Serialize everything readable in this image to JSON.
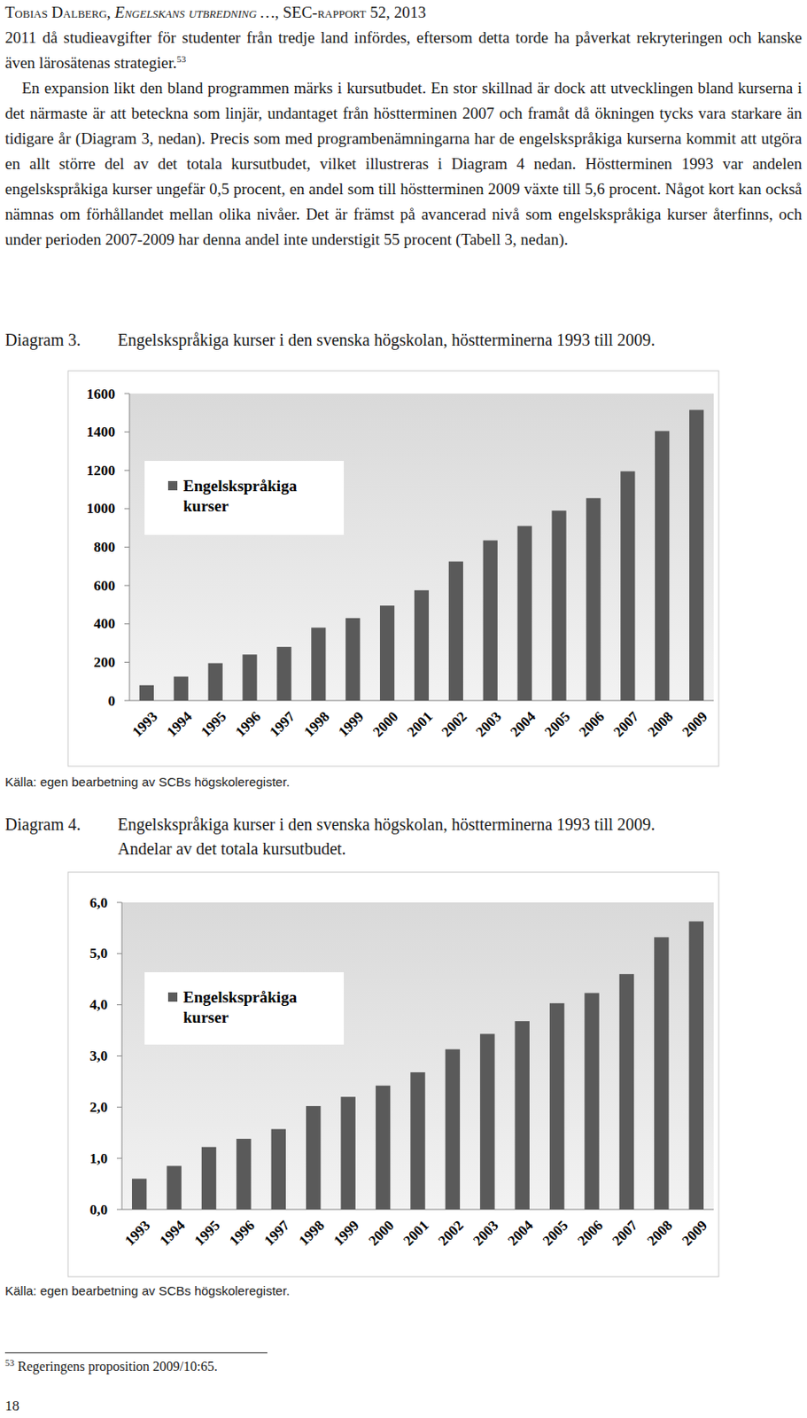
{
  "header": {
    "parts": [
      "Tobias Dalberg, ",
      "Engelskans utbredning …",
      ", SEC-rapport 52, 2013"
    ]
  },
  "paragraphs": [
    {
      "text": "2011 då studieavgifter för studenter från tredje land infördes, eftersom detta torde ha påverkat rekryteringen och kanske även lärosätenas strategier.",
      "footnote_ref": "53"
    },
    {
      "text": "En expansion likt den bland programmen märks i kursutbudet. En stor skillnad är dock att utvecklingen bland kurserna i det närmaste är att beteckna som linjär, undantaget från höstterminen 2007 och framåt då ökningen tycks vara starkare än tidigare år (Diagram 3, nedan). Precis som med programbenämningarna har de engelskspråkiga kurserna kommit att utgöra en allt större del av det totala kursutbudet, vilket illustreras i Diagram 4 nedan. Höstterminen 1993 var andelen engelskspråkiga kurser ungefär 0,5 procent, en andel som till höstterminen 2009 växte till 5,6 procent. Något kort kan också nämnas om förhållandet mellan olika nivåer. Det är främst på avancerad nivå som engelskspråkiga kurser återfinns, och under perioden 2007-2009 har denna andel inte understigit 55 procent (Tabell 3, nedan)."
    }
  ],
  "figures": [
    {
      "label": "Diagram 3.",
      "source": "Källa: egen bearbetning av SCBs högskoleregister."
    },
    {
      "label": "Diagram 4.",
      "source": "Källa: egen bearbetning av SCBs högskoleregister."
    }
  ],
  "chart_data": [
    {
      "type": "bar",
      "title": "Engelskspråkiga kurser i den svenska högskolan, höstterminerna 1993 till 2009.",
      "categories": [
        "1993",
        "1994",
        "1995",
        "1996",
        "1997",
        "1998",
        "1999",
        "2000",
        "2001",
        "2002",
        "2003",
        "2004",
        "2005",
        "2006",
        "2007",
        "2008",
        "2009"
      ],
      "series": [
        {
          "name": "Engelskspråkiga kurser",
          "color": "#5a5a5a",
          "values": [
            80,
            125,
            195,
            240,
            280,
            380,
            430,
            495,
            575,
            725,
            835,
            910,
            990,
            1055,
            1195,
            1405,
            1515
          ]
        }
      ],
      "ylim": [
        0,
        1600
      ],
      "yticks": [
        0,
        200,
        400,
        600,
        800,
        1000,
        1200,
        1400,
        1600
      ],
      "grid": false,
      "legend": "upper left"
    },
    {
      "type": "bar",
      "title": "Engelskspråkiga kurser i den svenska högskolan, höstterminerna 1993 till 2009.",
      "subtitle": "Andelar av det totala kursutbudet.",
      "categories": [
        "1993",
        "1994",
        "1995",
        "1996",
        "1997",
        "1998",
        "1999",
        "2000",
        "2001",
        "2002",
        "2003",
        "2004",
        "2005",
        "2006",
        "2007",
        "2008",
        "2009"
      ],
      "series": [
        {
          "name": "Engelskspråkiga kurser",
          "color": "#5a5a5a",
          "values": [
            0.6,
            0.85,
            1.22,
            1.38,
            1.57,
            2.02,
            2.2,
            2.42,
            2.68,
            3.13,
            3.43,
            3.68,
            4.03,
            4.23,
            4.6,
            5.32,
            5.63
          ]
        }
      ],
      "ylim": [
        0,
        6
      ],
      "yticks": [
        {
          "value": 0,
          "label": "0,0"
        },
        {
          "value": 1,
          "label": "1,0"
        },
        {
          "value": 2,
          "label": "2,0"
        },
        {
          "value": 3,
          "label": "3,0"
        },
        {
          "value": 4,
          "label": "4,0"
        },
        {
          "value": 5,
          "label": "5,0"
        },
        {
          "value": 6,
          "label": "6,0"
        }
      ],
      "grid": false,
      "legend": "upper left"
    }
  ],
  "footnote": {
    "ref": "53",
    "text": "Regeringens proposition 2009/10:65."
  },
  "page_number": "18"
}
